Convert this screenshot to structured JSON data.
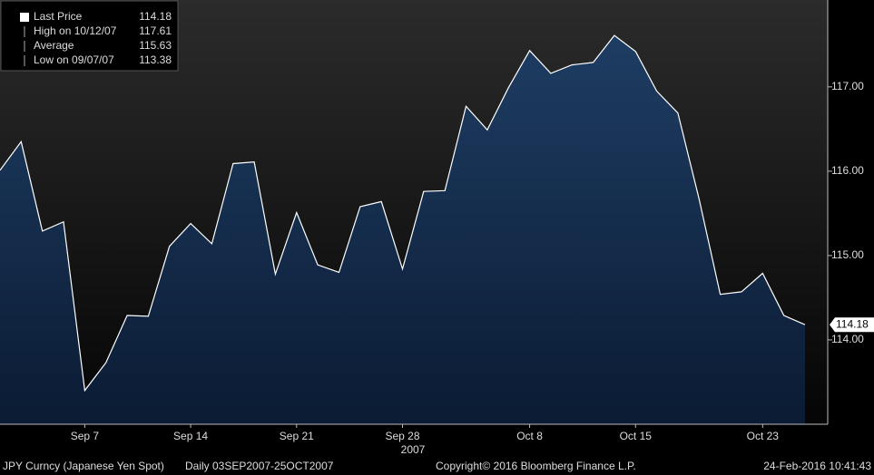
{
  "chart_data": {
    "type": "area",
    "categories": [
      "Sep 7",
      "Sep 14",
      "Sep 21",
      "Sep 28",
      "Oct 8",
      "Oct 15",
      "Oct 23"
    ],
    "x": [
      null,
      null,
      null,
      null,
      "Sep 7",
      null,
      null,
      null,
      null,
      "Sep 14",
      null,
      null,
      null,
      null,
      "Sep 21",
      null,
      null,
      null,
      null,
      "Sep 28",
      null,
      null,
      null,
      null,
      null,
      "Oct 8",
      null,
      null,
      null,
      null,
      "Oct 15",
      null,
      null,
      null,
      null,
      null,
      "Oct 23",
      null,
      null
    ],
    "year_label": "2007",
    "series": [
      {
        "name": "Last Price",
        "color": "#ffffff",
        "fill": "#14305a",
        "values": [
          116.01,
          116.35,
          115.29,
          115.4,
          113.4,
          113.73,
          114.29,
          114.28,
          115.11,
          115.38,
          115.14,
          116.09,
          116.11,
          114.78,
          115.51,
          114.89,
          114.8,
          115.58,
          115.64,
          114.84,
          115.76,
          115.77,
          116.77,
          116.49,
          116.99,
          117.43,
          117.16,
          117.26,
          117.29,
          117.61,
          117.42,
          116.95,
          116.69,
          115.67,
          114.54,
          114.57,
          114.79,
          114.29,
          114.18
        ]
      }
    ],
    "ylim": [
      113.0,
      118.03
    ],
    "yticks": [
      {
        "value": 114,
        "label": "114.00"
      },
      {
        "value": 115,
        "label": "115.00"
      },
      {
        "value": 116,
        "label": "116.00"
      },
      {
        "value": 117,
        "label": "117.00"
      }
    ],
    "last_value_label": "114.18",
    "legend": [
      {
        "label": "Last Price",
        "value": 114.18
      },
      {
        "label": "High on 10/12/07",
        "value": 117.61
      },
      {
        "label": "Average",
        "value": 115.63
      },
      {
        "label": "Low on 09/07/07",
        "value": 113.38
      }
    ],
    "footer": {
      "security": "JPY Curncy (Japanese Yen Spot)",
      "range": "Daily 03SEP2007-25OCT2007",
      "copyright": "Copyright© 2016 Bloomberg Finance L.P.",
      "timestamp": "24-Feb-2016 10:41:43"
    }
  }
}
